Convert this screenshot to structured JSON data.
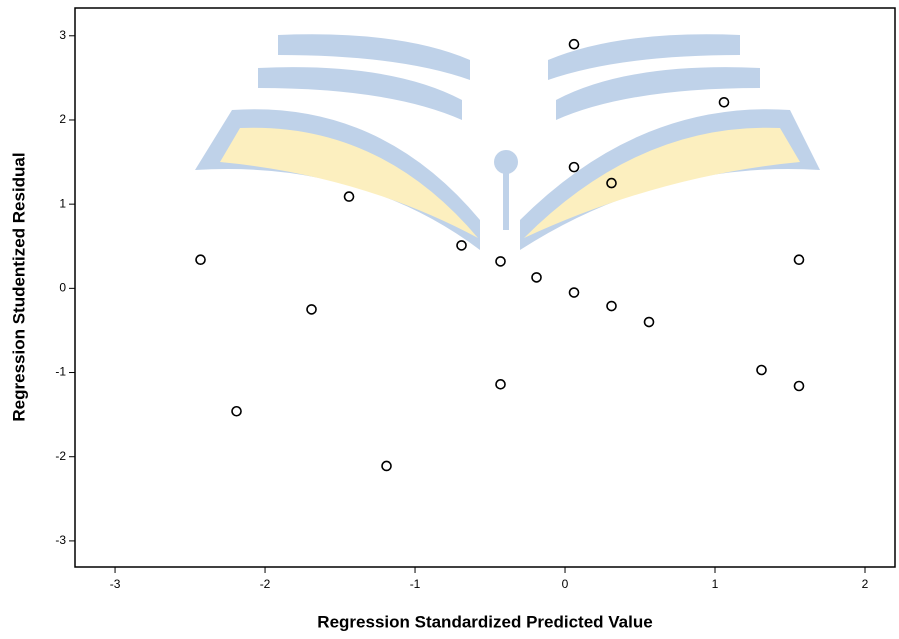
{
  "chart_data": {
    "type": "scatter",
    "x_label": "Regression Standardized Predicted Value",
    "y_label": "Regression Studentized Residual",
    "x": [
      -2.43,
      -2.19,
      -1.69,
      -1.44,
      -1.19,
      -0.69,
      -0.43,
      -0.43,
      -0.19,
      0.06,
      0.06,
      0.06,
      0.31,
      0.31,
      0.56,
      1.06,
      1.31,
      1.56,
      1.56
    ],
    "values": [
      0.34,
      -1.46,
      -0.25,
      1.09,
      -2.11,
      0.51,
      0.32,
      -1.14,
      0.13,
      2.9,
      1.44,
      -0.05,
      1.25,
      -0.21,
      -0.4,
      2.21,
      -0.97,
      0.34,
      -1.16
    ],
    "color": "#000000",
    "xlim": [
      -3.267,
      2.2
    ],
    "ylim": [
      -3.31,
      3.33
    ],
    "xticks": [
      -3,
      -2,
      -1,
      0,
      1,
      2
    ],
    "yticks": [
      -3,
      -2,
      -1,
      0,
      1,
      2,
      3
    ]
  }
}
